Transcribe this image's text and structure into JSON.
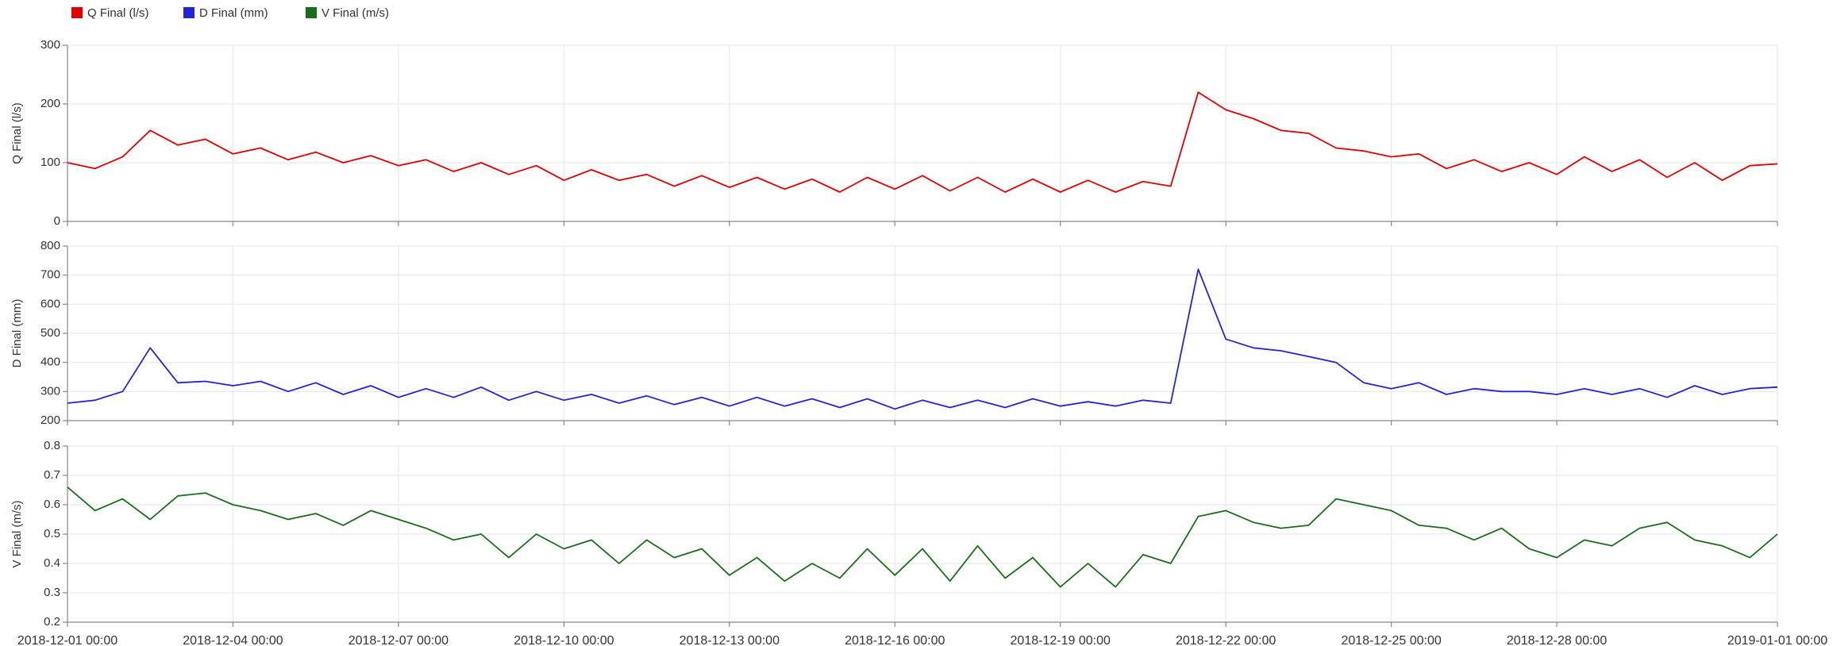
{
  "chart_data": [
    {
      "type": "line",
      "ylabel": "Q Final (l/s)",
      "x": [
        "2018-12-01 00:00",
        "2018-12-01 12:00",
        "2018-12-02 00:00",
        "2018-12-02 12:00",
        "2018-12-03 00:00",
        "2018-12-03 12:00",
        "2018-12-04 00:00",
        "2018-12-04 12:00",
        "2018-12-05 00:00",
        "2018-12-05 12:00",
        "2018-12-06 00:00",
        "2018-12-06 12:00",
        "2018-12-07 00:00",
        "2018-12-07 12:00",
        "2018-12-08 00:00",
        "2018-12-08 12:00",
        "2018-12-09 00:00",
        "2018-12-09 12:00",
        "2018-12-10 00:00",
        "2018-12-10 12:00",
        "2018-12-11 00:00",
        "2018-12-11 12:00",
        "2018-12-12 00:00",
        "2018-12-12 12:00",
        "2018-12-13 00:00",
        "2018-12-13 12:00",
        "2018-12-14 00:00",
        "2018-12-14 12:00",
        "2018-12-15 00:00",
        "2018-12-15 12:00",
        "2018-12-16 00:00",
        "2018-12-16 12:00",
        "2018-12-17 00:00",
        "2018-12-17 12:00",
        "2018-12-18 00:00",
        "2018-12-18 12:00",
        "2018-12-19 00:00",
        "2018-12-19 12:00",
        "2018-12-20 00:00",
        "2018-12-20 12:00",
        "2018-12-21 00:00",
        "2018-12-21 12:00",
        "2018-12-22 00:00",
        "2018-12-22 12:00",
        "2018-12-23 00:00",
        "2018-12-23 12:00",
        "2018-12-24 00:00",
        "2018-12-24 12:00",
        "2018-12-25 00:00",
        "2018-12-25 12:00",
        "2018-12-26 00:00",
        "2018-12-26 12:00",
        "2018-12-27 00:00",
        "2018-12-27 12:00",
        "2018-12-28 00:00",
        "2018-12-28 12:00",
        "2018-12-29 00:00",
        "2018-12-29 12:00",
        "2018-12-30 00:00",
        "2018-12-30 12:00",
        "2018-12-31 00:00",
        "2018-12-31 12:00",
        "2019-01-01 00:00"
      ],
      "series": [
        {
          "name": "Q Final (l/s)",
          "color": "#e00000",
          "values": [
            100,
            90,
            110,
            155,
            130,
            140,
            115,
            125,
            105,
            118,
            100,
            112,
            95,
            105,
            85,
            100,
            80,
            95,
            70,
            88,
            70,
            80,
            60,
            78,
            58,
            75,
            55,
            72,
            50,
            75,
            55,
            78,
            52,
            75,
            50,
            72,
            50,
            70,
            50,
            68,
            60,
            220,
            190,
            175,
            155,
            150,
            125,
            120,
            110,
            115,
            90,
            105,
            85,
            100,
            80,
            110,
            85,
            105,
            75,
            100,
            70,
            95,
            98
          ]
        }
      ],
      "xlim": [
        "2018-12-01 00:00",
        "2019-01-01 00:00"
      ],
      "ylim": [
        0,
        300
      ],
      "yticks": [
        0,
        100,
        200,
        300
      ],
      "grid": true
    },
    {
      "type": "line",
      "ylabel": "D Final (mm)",
      "x": [
        "2018-12-01 00:00",
        "2018-12-01 12:00",
        "2018-12-02 00:00",
        "2018-12-02 12:00",
        "2018-12-03 00:00",
        "2018-12-03 12:00",
        "2018-12-04 00:00",
        "2018-12-04 12:00",
        "2018-12-05 00:00",
        "2018-12-05 12:00",
        "2018-12-06 00:00",
        "2018-12-06 12:00",
        "2018-12-07 00:00",
        "2018-12-07 12:00",
        "2018-12-08 00:00",
        "2018-12-08 12:00",
        "2018-12-09 00:00",
        "2018-12-09 12:00",
        "2018-12-10 00:00",
        "2018-12-10 12:00",
        "2018-12-11 00:00",
        "2018-12-11 12:00",
        "2018-12-12 00:00",
        "2018-12-12 12:00",
        "2018-12-13 00:00",
        "2018-12-13 12:00",
        "2018-12-14 00:00",
        "2018-12-14 12:00",
        "2018-12-15 00:00",
        "2018-12-15 12:00",
        "2018-12-16 00:00",
        "2018-12-16 12:00",
        "2018-12-17 00:00",
        "2018-12-17 12:00",
        "2018-12-18 00:00",
        "2018-12-18 12:00",
        "2018-12-19 00:00",
        "2018-12-19 12:00",
        "2018-12-20 00:00",
        "2018-12-20 12:00",
        "2018-12-21 00:00",
        "2018-12-21 12:00",
        "2018-12-22 00:00",
        "2018-12-22 12:00",
        "2018-12-23 00:00",
        "2018-12-23 12:00",
        "2018-12-24 00:00",
        "2018-12-24 12:00",
        "2018-12-25 00:00",
        "2018-12-25 12:00",
        "2018-12-26 00:00",
        "2018-12-26 12:00",
        "2018-12-27 00:00",
        "2018-12-27 12:00",
        "2018-12-28 00:00",
        "2018-12-28 12:00",
        "2018-12-29 00:00",
        "2018-12-29 12:00",
        "2018-12-30 00:00",
        "2018-12-30 12:00",
        "2018-12-31 00:00",
        "2018-12-31 12:00",
        "2019-01-01 00:00"
      ],
      "series": [
        {
          "name": "D Final (mm)",
          "color": "#2323dc",
          "values": [
            260,
            270,
            300,
            450,
            330,
            335,
            320,
            335,
            300,
            330,
            290,
            320,
            280,
            310,
            280,
            315,
            270,
            300,
            270,
            290,
            260,
            285,
            255,
            280,
            250,
            280,
            250,
            275,
            245,
            275,
            240,
            270,
            245,
            270,
            245,
            275,
            250,
            265,
            250,
            270,
            260,
            720,
            480,
            450,
            440,
            420,
            400,
            330,
            310,
            330,
            290,
            310,
            300,
            300,
            290,
            310,
            290,
            310,
            280,
            320,
            290,
            310,
            315
          ]
        }
      ],
      "xlim": [
        "2018-12-01 00:00",
        "2019-01-01 00:00"
      ],
      "ylim": [
        200,
        800
      ],
      "yticks": [
        200,
        300,
        400,
        500,
        600,
        700,
        800
      ],
      "grid": true
    },
    {
      "type": "line",
      "ylabel": "V Final (m/s)",
      "x": [
        "2018-12-01 00:00",
        "2018-12-01 12:00",
        "2018-12-02 00:00",
        "2018-12-02 12:00",
        "2018-12-03 00:00",
        "2018-12-03 12:00",
        "2018-12-04 00:00",
        "2018-12-04 12:00",
        "2018-12-05 00:00",
        "2018-12-05 12:00",
        "2018-12-06 00:00",
        "2018-12-06 12:00",
        "2018-12-07 00:00",
        "2018-12-07 12:00",
        "2018-12-08 00:00",
        "2018-12-08 12:00",
        "2018-12-09 00:00",
        "2018-12-09 12:00",
        "2018-12-10 00:00",
        "2018-12-10 12:00",
        "2018-12-11 00:00",
        "2018-12-11 12:00",
        "2018-12-12 00:00",
        "2018-12-12 12:00",
        "2018-12-13 00:00",
        "2018-12-13 12:00",
        "2018-12-14 00:00",
        "2018-12-14 12:00",
        "2018-12-15 00:00",
        "2018-12-15 12:00",
        "2018-12-16 00:00",
        "2018-12-16 12:00",
        "2018-12-17 00:00",
        "2018-12-17 12:00",
        "2018-12-18 00:00",
        "2018-12-18 12:00",
        "2018-12-19 00:00",
        "2018-12-19 12:00",
        "2018-12-20 00:00",
        "2018-12-20 12:00",
        "2018-12-21 00:00",
        "2018-12-21 12:00",
        "2018-12-22 00:00",
        "2018-12-22 12:00",
        "2018-12-23 00:00",
        "2018-12-23 12:00",
        "2018-12-24 00:00",
        "2018-12-24 12:00",
        "2018-12-25 00:00",
        "2018-12-25 12:00",
        "2018-12-26 00:00",
        "2018-12-26 12:00",
        "2018-12-27 00:00",
        "2018-12-27 12:00",
        "2018-12-28 00:00",
        "2018-12-28 12:00",
        "2018-12-29 00:00",
        "2018-12-29 12:00",
        "2018-12-30 00:00",
        "2018-12-30 12:00",
        "2018-12-31 00:00",
        "2018-12-31 12:00",
        "2019-01-01 00:00"
      ],
      "series": [
        {
          "name": "V Final (m/s)",
          "color": "#1a6e1a",
          "values": [
            0.66,
            0.58,
            0.62,
            0.55,
            0.63,
            0.64,
            0.6,
            0.58,
            0.55,
            0.57,
            0.53,
            0.58,
            0.55,
            0.52,
            0.48,
            0.5,
            0.42,
            0.5,
            0.45,
            0.48,
            0.4,
            0.48,
            0.42,
            0.45,
            0.36,
            0.42,
            0.34,
            0.4,
            0.35,
            0.45,
            0.36,
            0.45,
            0.34,
            0.46,
            0.35,
            0.42,
            0.32,
            0.4,
            0.32,
            0.43,
            0.4,
            0.56,
            0.58,
            0.54,
            0.52,
            0.53,
            0.62,
            0.6,
            0.58,
            0.53,
            0.52,
            0.48,
            0.52,
            0.45,
            0.42,
            0.48,
            0.46,
            0.52,
            0.54,
            0.48,
            0.46,
            0.42,
            0.5
          ]
        }
      ],
      "xlim": [
        "2018-12-01 00:00",
        "2019-01-01 00:00"
      ],
      "ylim": [
        0.2,
        0.8
      ],
      "yticks": [
        0.2,
        0.3,
        0.4,
        0.5,
        0.6,
        0.7,
        0.8
      ],
      "xticks": [
        "2018-12-01 00:00",
        "2018-12-04 00:00",
        "2018-12-07 00:00",
        "2018-12-10 00:00",
        "2018-12-13 00:00",
        "2018-12-16 00:00",
        "2018-12-19 00:00",
        "2018-12-22 00:00",
        "2018-12-25 00:00",
        "2018-12-28 00:00",
        "2019-01-01 00:00"
      ],
      "grid": true
    }
  ]
}
